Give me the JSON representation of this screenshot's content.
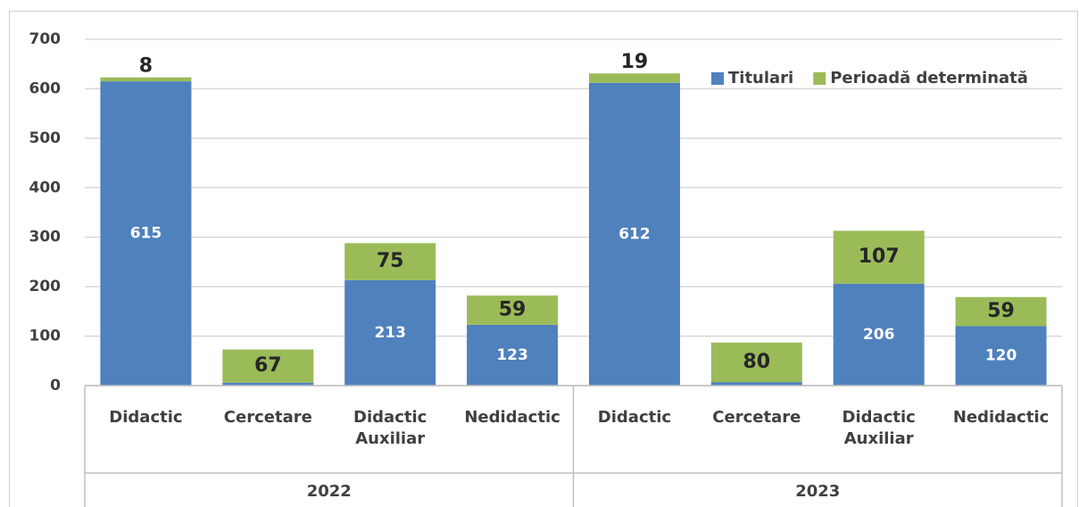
{
  "chart_data": {
    "type": "stacked_bar",
    "groups": [
      "2022",
      "2023"
    ],
    "categories": [
      "Didactic",
      "Cercetare",
      "Didactic Auxiliar",
      "Nedidactic",
      "Didactic",
      "Cercetare",
      "Didactic Auxiliar",
      "Nedidactic"
    ],
    "series": [
      {
        "name": "Titulari",
        "color": "#4f81bd",
        "values": [
          615,
          6,
          213,
          123,
          612,
          7,
          206,
          120
        ]
      },
      {
        "name": "Perioadă determinată",
        "color": "#9bbb59",
        "values": [
          8,
          67,
          75,
          59,
          19,
          80,
          107,
          59
        ]
      }
    ],
    "ylim": [
      0,
      700
    ],
    "yticks": [
      0,
      100,
      200,
      300,
      400,
      500,
      600,
      700
    ],
    "grid": true,
    "legend": "top-right"
  }
}
